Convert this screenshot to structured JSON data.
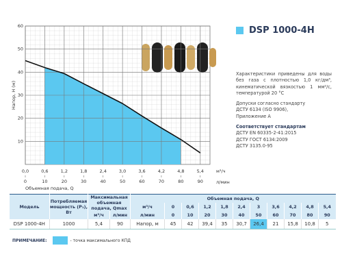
{
  "chart_data": {
    "type": "line",
    "ylabel": "Напор, Н (м)",
    "xlabel": "Объемная подача, Q",
    "x_unit": "м³/ч",
    "x2_unit": "л/мин",
    "x": [
      0,
      0.6,
      1.2,
      1.8,
      2.4,
      3,
      3.6,
      4.2,
      4.8,
      5.4
    ],
    "values": [
      45,
      42,
      39.4,
      35,
      30.7,
      26.4,
      21,
      15.8,
      10.8,
      5
    ],
    "color": "#111111",
    "xlim": [
      0,
      5.7
    ],
    "xticks": [
      {
        "value": 0,
        "label": "0,0"
      },
      {
        "value": 0.6,
        "label": "0,6"
      },
      {
        "value": 1.2,
        "label": "1,2"
      },
      {
        "value": 1.8,
        "label": "1,8"
      },
      {
        "value": 2.4,
        "label": "2,4"
      },
      {
        "value": 3,
        "label": "3,0"
      },
      {
        "value": 3.6,
        "label": "3,6"
      },
      {
        "value": 4.2,
        "label": "4,2"
      },
      {
        "value": 4.8,
        "label": "4,8"
      },
      {
        "value": 5.4,
        "label": "5,4"
      }
    ],
    "x2lim": [
      0,
      95
    ],
    "x2ticks": [
      0,
      10,
      20,
      30,
      40,
      50,
      60,
      70,
      80,
      90
    ],
    "ylim": [
      0,
      60
    ],
    "yticks": [
      10,
      20,
      30,
      40,
      50,
      60
    ],
    "grid": true,
    "shaded": {
      "from": 0.6,
      "to": 4.8,
      "color": "#5bc8f0"
    }
  },
  "product": {
    "title": "DSP 1000-4H"
  },
  "notes": {
    "conditions": "Характеристики приведены для воды без газа с плотностью 1,0 кг/дм³, кинематической вязкостью 1 мм²/с, температурой 20 °С",
    "tolerances": [
      "Допуски согласно стандарту",
      "ДСТУ 6134 (ISO 9906),",
      "Приложение А"
    ],
    "standards_title": "Соответствует стандартам",
    "standards": [
      "ДСТУ EN 60335-2-41:2015",
      "ДСТУ ГОСТ 6134:2009",
      "ДСТУ 3135.0-95"
    ]
  },
  "table": {
    "model": "Модель",
    "power": "Потребляемая мощность (P₁), Вт",
    "qmax": "Максимальная объемная подача, Qmax",
    "qmax_units": [
      "м³/ч",
      "л/мин"
    ],
    "flow": "Объемная подача, Q",
    "flow_rows": [
      {
        "unit": "м³/ч",
        "values": [
          "0",
          "0,6",
          "1,2",
          "1,8",
          "2,4",
          "3",
          "3,6",
          "4,2",
          "4,8",
          "5,4"
        ]
      },
      {
        "unit": "л/мин",
        "values": [
          "0",
          "10",
          "20",
          "30",
          "40",
          "50",
          "60",
          "70",
          "80",
          "90"
        ]
      }
    ],
    "rows": [
      {
        "model": "DSP 1000-4H",
        "power": "1000",
        "qmax": [
          "5,4",
          "90"
        ],
        "head_label": "Напор, м",
        "head": [
          "45",
          "42",
          "39,4",
          "35",
          "30,7",
          "26,4",
          "21",
          "15,8",
          "10,8",
          "5"
        ]
      }
    ]
  },
  "footnote": {
    "label": "ПРИМЕЧАНИЕ:",
    "text": "- точка максимального КПД",
    "color": "#5bc8f0"
  }
}
